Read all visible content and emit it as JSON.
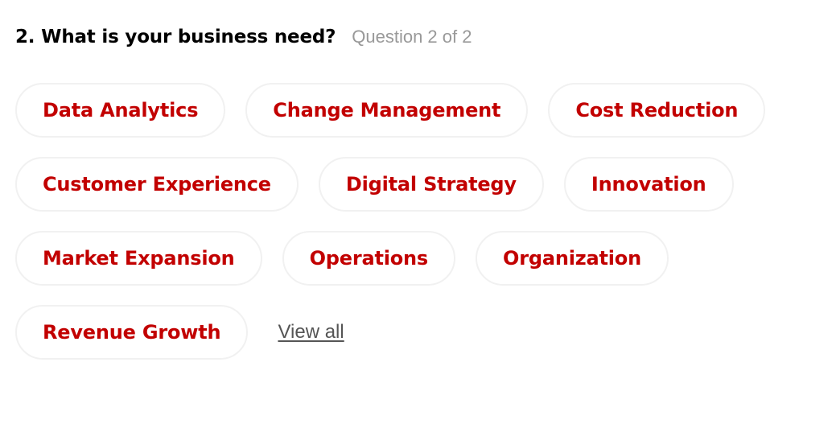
{
  "question": {
    "title": "2. What is your business need?",
    "progress": "Question 2 of 2"
  },
  "options": {
    "rows": [
      [
        "Data Analytics",
        "Change Management",
        "Cost Reduction"
      ],
      [
        "Customer Experience",
        "Digital Strategy",
        "Innovation"
      ],
      [
        "Market Expansion",
        "Operations",
        "Organization"
      ],
      [
        "Revenue Growth"
      ]
    ]
  },
  "view_all_label": "View all",
  "colors": {
    "chip_text": "#c20000",
    "chip_border": "#f1f1f1",
    "progress_text": "#999999",
    "link_text": "#555555"
  }
}
